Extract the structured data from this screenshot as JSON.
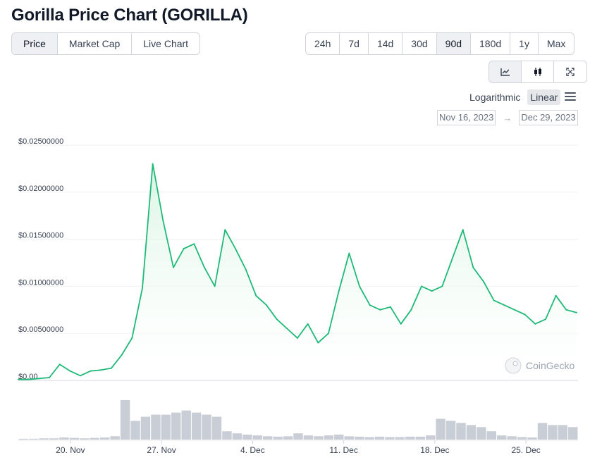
{
  "page": {
    "title": "Gorilla Price Chart (GORILLA)"
  },
  "tabs": [
    {
      "label": "Price",
      "active": true
    },
    {
      "label": "Market Cap",
      "active": false
    },
    {
      "label": "Live Chart",
      "active": false
    }
  ],
  "ranges": [
    {
      "label": "24h",
      "active": false
    },
    {
      "label": "7d",
      "active": false
    },
    {
      "label": "14d",
      "active": false
    },
    {
      "label": "30d",
      "active": false
    },
    {
      "label": "90d",
      "active": true
    },
    {
      "label": "180d",
      "active": false
    },
    {
      "label": "1y",
      "active": false
    },
    {
      "label": "Max",
      "active": false
    }
  ],
  "view_buttons": [
    {
      "icon": "line-chart-icon",
      "active": true
    },
    {
      "icon": "candlestick-icon",
      "active": false
    },
    {
      "icon": "fullscreen-icon",
      "active": false
    }
  ],
  "scale": {
    "logarithmic_label": "Logarithmic",
    "linear_label": "Linear",
    "selected": "Linear"
  },
  "date_range": {
    "from": "Nov 16, 2023",
    "arrow": "→",
    "to": "Dec 29, 2023"
  },
  "watermark": {
    "text": "CoinGecko"
  },
  "colors": {
    "line": "#1fb978",
    "area_top": "#d5f3e0",
    "volume": "#c9ced6",
    "active_bg": "#eef0f3"
  },
  "chart_data": {
    "type": "line",
    "x_start": "Nov 16, 2023",
    "x_end": "Dec 29, 2023",
    "x_ticks": [
      "20. Nov",
      "27. Nov",
      "4. Dec",
      "11. Dec",
      "18. Dec",
      "25. Dec"
    ],
    "y_ticks": [
      "$0.00",
      "$0.00500000",
      "$0.01000000",
      "$0.01500000",
      "$0.02000000",
      "$0.02500000"
    ],
    "ylim": [
      0,
      0.025
    ],
    "grid": true,
    "series": [
      {
        "x": [
          "Nov 16",
          "Nov 17",
          "Nov 18",
          "Nov 19",
          "Nov 20",
          "Nov 21",
          "Nov 22",
          "Nov 23",
          "Nov 24",
          "Nov 25",
          "Nov 26",
          "Nov 27",
          "Nov 28",
          "Nov 29",
          "Nov 29 12:00",
          "Nov 30",
          "Nov 30 12:00",
          "Dec 1",
          "Dec 1 12:00",
          "Dec 2",
          "Dec 2 12:00",
          "Dec 3",
          "Dec 3 12:00",
          "Dec 4",
          "Dec 4 12:00",
          "Dec 5",
          "Dec 6",
          "Dec 7",
          "Dec 8",
          "Dec 9",
          "Dec 10",
          "Dec 10 12:00",
          "Dec 11",
          "Dec 11 12:00",
          "Dec 12",
          "Dec 13",
          "Dec 14",
          "Dec 15",
          "Dec 16",
          "Dec 17",
          "Dec 18",
          "Dec 19",
          "Dec 20",
          "Dec 20 12:00",
          "Dec 21",
          "Dec 21 12:00",
          "Dec 22",
          "Dec 23",
          "Dec 24",
          "Dec 25",
          "Dec 26",
          "Dec 27",
          "Dec 27 12:00",
          "Dec 28",
          "Dec 29"
        ],
        "values": [
          0.0001,
          0.0001,
          0.0002,
          0.0003,
          0.0017,
          0.001,
          0.0005,
          0.001,
          0.0011,
          0.0013,
          0.0027,
          0.0045,
          0.0098,
          0.023,
          0.017,
          0.012,
          0.014,
          0.0145,
          0.012,
          0.01,
          0.016,
          0.014,
          0.0118,
          0.009,
          0.008,
          0.0065,
          0.0055,
          0.0045,
          0.006,
          0.004,
          0.005,
          0.0095,
          0.0135,
          0.01,
          0.008,
          0.0075,
          0.0078,
          0.006,
          0.0075,
          0.01,
          0.0095,
          0.01,
          0.013,
          0.016,
          0.012,
          0.0105,
          0.0085,
          0.008,
          0.0075,
          0.007,
          0.006,
          0.0065,
          0.009,
          0.0075,
          0.0072
        ]
      }
    ],
    "volume_relative": [
      0.02,
      0.02,
      0.03,
      0.03,
      0.05,
      0.04,
      0.03,
      0.04,
      0.05,
      0.08,
      0.95,
      0.45,
      0.55,
      0.6,
      0.6,
      0.65,
      0.7,
      0.65,
      0.6,
      0.55,
      0.2,
      0.15,
      0.12,
      0.1,
      0.08,
      0.07,
      0.08,
      0.15,
      0.1,
      0.08,
      0.1,
      0.12,
      0.08,
      0.07,
      0.06,
      0.07,
      0.06,
      0.06,
      0.07,
      0.07,
      0.1,
      0.5,
      0.45,
      0.4,
      0.35,
      0.3,
      0.2,
      0.1,
      0.08,
      0.06,
      0.05,
      0.4,
      0.35,
      0.35,
      0.3
    ]
  }
}
